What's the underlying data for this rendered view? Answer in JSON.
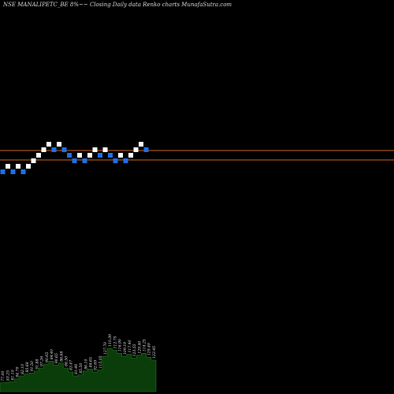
{
  "chart_data": {
    "type": "renko",
    "title": "NSE MANALIPETC_BE 8%~~ Closing Daily data Renko charts MunafaSutra.com",
    "box_size_percent": 8,
    "colors": {
      "background": "#000000",
      "up_brick": "#ffffff",
      "down_brick": "#1e6fe6",
      "reference_line": "#c8641e",
      "volume_fill": "#0b3d0b",
      "volume_line": "#1f7a1f",
      "label_text": "#e8e8e8"
    },
    "reference_levels": [
      "upper",
      "lower"
    ],
    "bricks": [
      {
        "dir": "down",
        "level": 0
      },
      {
        "dir": "up",
        "level": 1
      },
      {
        "dir": "down",
        "level": 0
      },
      {
        "dir": "up",
        "level": 1
      },
      {
        "dir": "down",
        "level": 0
      },
      {
        "dir": "up",
        "level": 1
      },
      {
        "dir": "up",
        "level": 2
      },
      {
        "dir": "up",
        "level": 3
      },
      {
        "dir": "up",
        "level": 4
      },
      {
        "dir": "up",
        "level": 5
      },
      {
        "dir": "down",
        "level": 4
      },
      {
        "dir": "up",
        "level": 5
      },
      {
        "dir": "down",
        "level": 4
      },
      {
        "dir": "down",
        "level": 3
      },
      {
        "dir": "down",
        "level": 2
      },
      {
        "dir": "up",
        "level": 3
      },
      {
        "dir": "down",
        "level": 2
      },
      {
        "dir": "up",
        "level": 3
      },
      {
        "dir": "up",
        "level": 4
      },
      {
        "dir": "down",
        "level": 3
      },
      {
        "dir": "up",
        "level": 4
      },
      {
        "dir": "down",
        "level": 3
      },
      {
        "dir": "down",
        "level": 2
      },
      {
        "dir": "up",
        "level": 3
      },
      {
        "dir": "down",
        "level": 2
      },
      {
        "dir": "up",
        "level": 3
      },
      {
        "dir": "up",
        "level": 4
      },
      {
        "dir": "up",
        "level": 5
      },
      {
        "dir": "down",
        "level": 4
      }
    ],
    "volume": {
      "values": [
        0.9,
        0.95,
        1.0,
        1.3,
        1.6,
        1.8,
        1.9,
        2.1,
        2.4,
        2.8,
        3.1,
        2.7,
        2.9,
        2.4,
        2.0,
        1.6,
        1.7,
        2.1,
        2.3,
        2.0,
        2.2,
        3.6,
        4.4,
        4.2,
        3.9,
        3.6,
        3.8,
        3.4,
        3.7,
        3.9,
        3.5,
        3.2
      ],
      "labels": [
        "77.00",
        "83.25",
        "81.10",
        "84.79",
        "82.10",
        "85.68",
        "91.50",
        "91.88",
        "97.26",
        "90.65",
        "84.40",
        "90.65",
        "86.68",
        "88.50",
        "83.47",
        "81.46",
        "85.50",
        "86.10",
        "84.65",
        "92.69",
        "115.05",
        "127.70",
        "110.39",
        "112.75",
        "116.90",
        "109.19",
        "117.40",
        "123.55",
        "129.40",
        "114.25",
        "129.49",
        "122.45"
      ]
    }
  }
}
